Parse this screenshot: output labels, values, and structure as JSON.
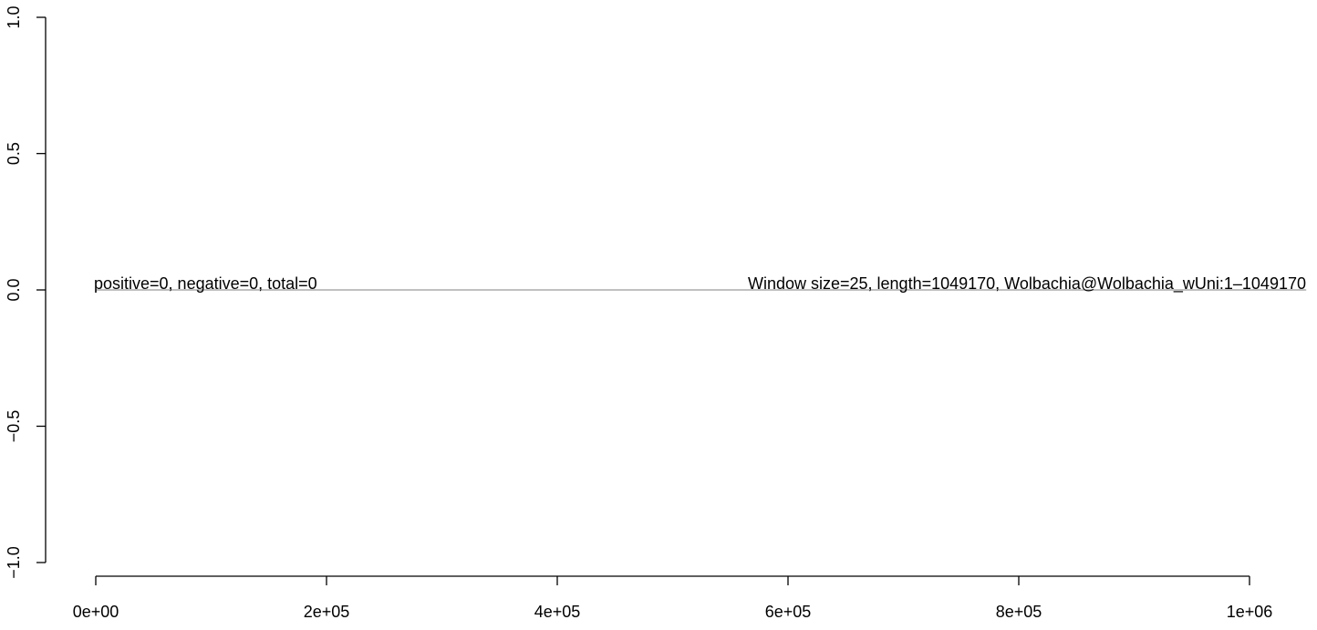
{
  "chart_data": {
    "type": "line",
    "x": [
      1,
      1049170
    ],
    "series": [
      {
        "values": [
          0,
          0
        ],
        "color": "#808080"
      }
    ],
    "xlim": [
      0,
      1000000
    ],
    "ylim": [
      -1.0,
      1.0
    ],
    "x_ticks": [
      0,
      200000,
      400000,
      600000,
      800000,
      1000000
    ],
    "x_tick_labels": [
      "0e+00",
      "2e+05",
      "4e+05",
      "6e+05",
      "8e+05",
      "1e+06"
    ],
    "y_ticks": [
      -1.0,
      -0.5,
      0.0,
      0.5,
      1.0
    ],
    "y_tick_labels": [
      "−1.0",
      "−0.5",
      "0.0",
      "0.5",
      "1.0"
    ],
    "annotations": [
      {
        "text": "positive=0, negative=0, total=0",
        "x": 0,
        "y": 0,
        "align": "left"
      },
      {
        "text": "Window size=25, length=1049170, Wolbachia@Wolbachia_wUni:1–1049170",
        "x": 1049170,
        "y": 0,
        "align": "right"
      }
    ],
    "title": "",
    "xlabel": "",
    "ylabel": "",
    "grid": false
  }
}
